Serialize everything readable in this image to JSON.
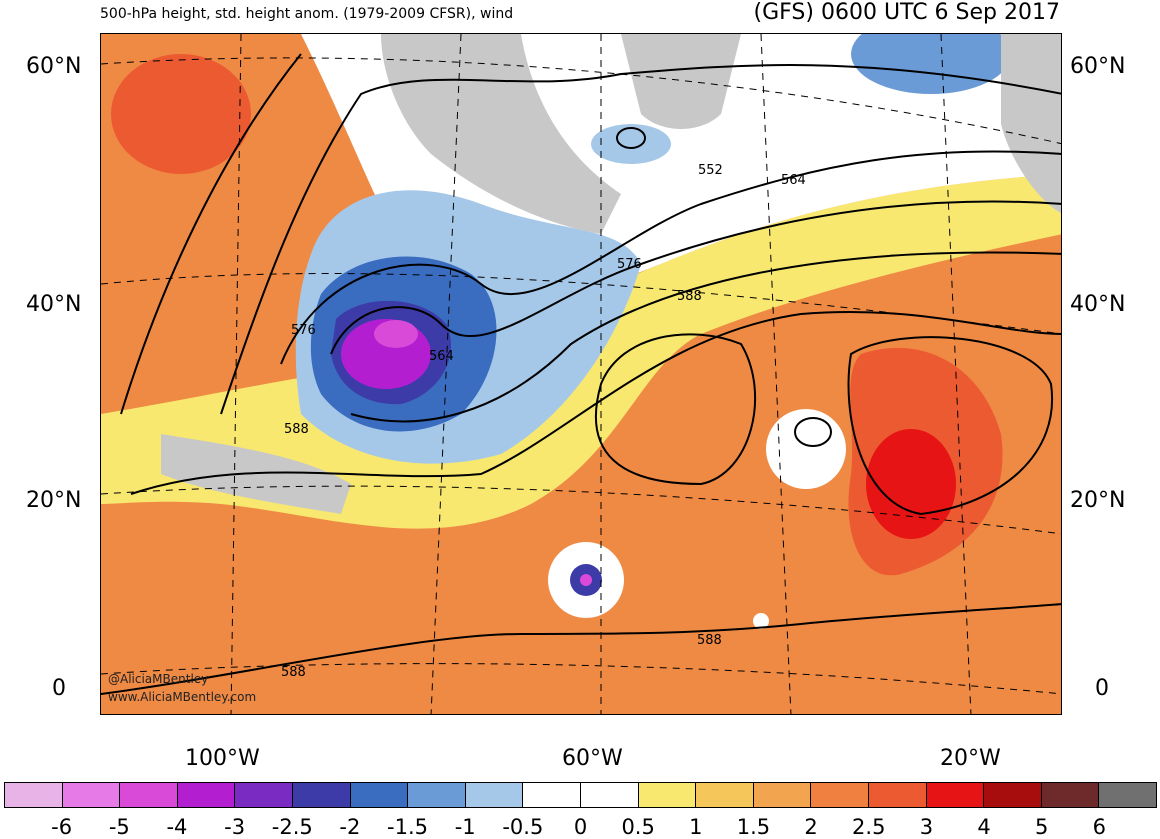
{
  "header": {
    "left_title": "500-hPa height, std. height anom. (1979-2009 CFSR), wind",
    "right_title": "(GFS) 0600 UTC 6 Sep 2017"
  },
  "map": {
    "lat_labels": [
      "60°N",
      "40°N",
      "20°N",
      "0"
    ],
    "lon_labels": [
      "100°W",
      "60°W",
      "20°W"
    ],
    "contour_labels": [
      "552",
      "564",
      "576",
      "588",
      "576",
      "564",
      "588",
      "588",
      "588"
    ],
    "credits": [
      "@AliciaMBentley",
      "www.AliciaMBentley.com"
    ]
  },
  "colorbar": {
    "tick_labels": [
      "-6",
      "-5",
      "-4",
      "-3",
      "-2.5",
      "-2",
      "-1.5",
      "-1",
      "-0.5",
      "0",
      "0.5",
      "1",
      "1.5",
      "2",
      "2.5",
      "3",
      "4",
      "5",
      "6"
    ],
    "colors": [
      "#e8b4e8",
      "#e67ae6",
      "#d94ad9",
      "#b31fd0",
      "#7a2bc2",
      "#3d3ba8",
      "#3a6cc0",
      "#6a9bd6",
      "#a6c8e8",
      "#ffffff",
      "#ffffff",
      "#f8e870",
      "#f5c75a",
      "#f2a44e",
      "#ef8040",
      "#ec5a32",
      "#e61414",
      "#a80d0d",
      "#6e2a2a",
      "#707070"
    ]
  }
}
